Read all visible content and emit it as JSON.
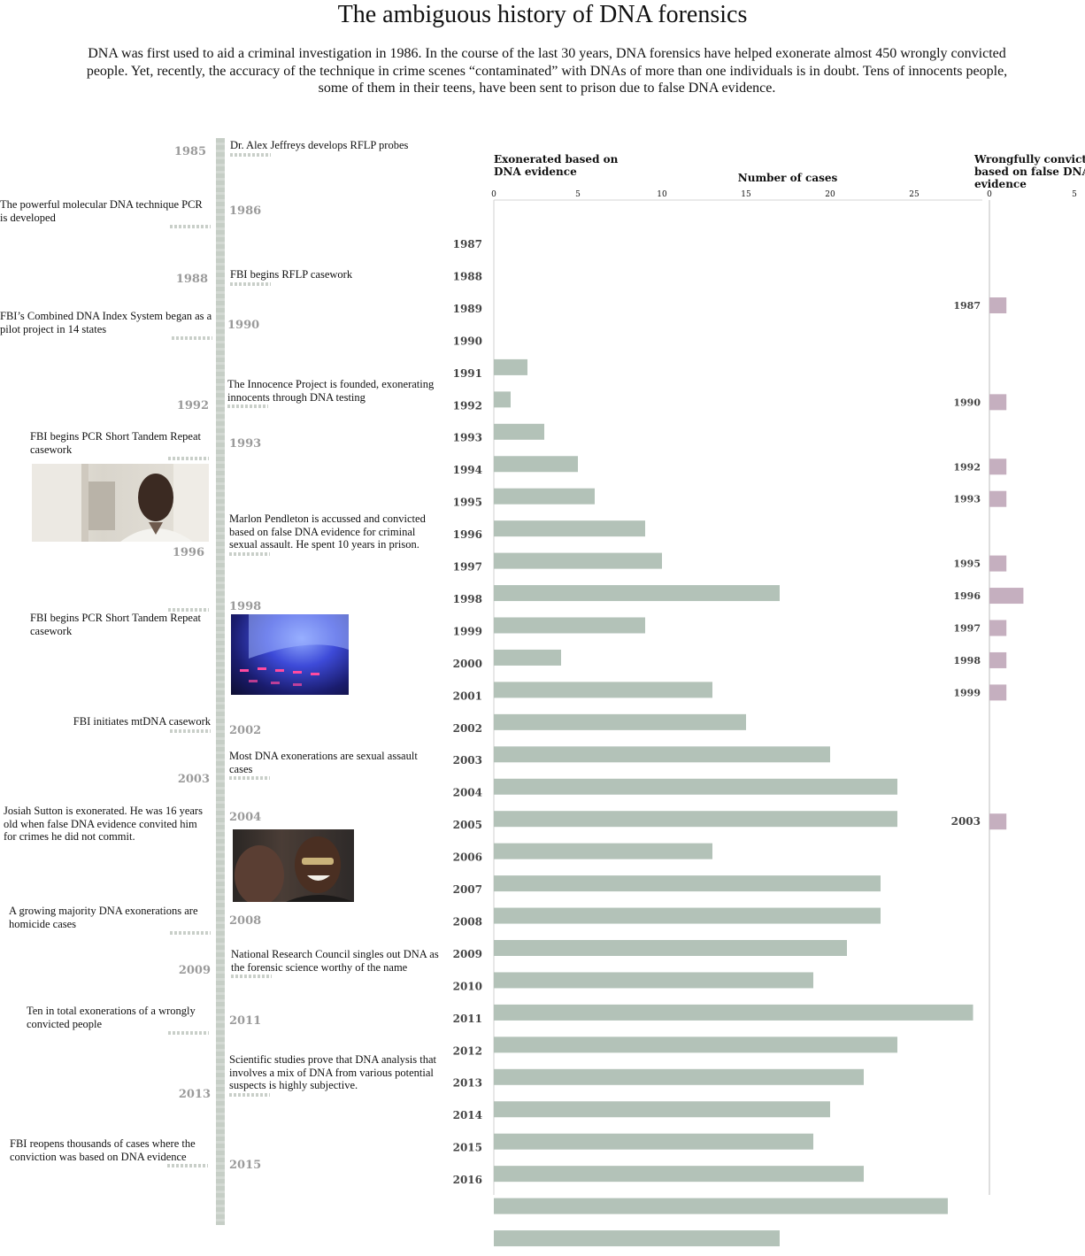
{
  "title": "The ambiguous history of DNA forensics",
  "intro": "DNA was first used to aid a criminal investigation in 1986. In the course of the last 30 years, DNA forensics have helped exonerate almost 450 wrongly convicted people. Yet, recently, the accuracy of the technique in crime scenes “contaminated” with DNAs of more than one individuals is in doubt. Tens of innocents people, some of them in their teens, have been sent to prison due to false DNA evidence.",
  "timeline": [
    {
      "year": "1985",
      "side": "right",
      "text": "Dr. Alex Jeffreys develops RFLP probes"
    },
    {
      "year": "1986",
      "side": "left",
      "text": "The powerful molecular DNA technique PCR is developed"
    },
    {
      "year": "1988",
      "side": "right",
      "text": "FBI begins RFLP casework"
    },
    {
      "year": "1990",
      "side": "left",
      "text": "FBI’s Combined DNA Index System began as a pilot project in 14 states"
    },
    {
      "year": "1992",
      "side": "right",
      "text": "The Innocence Project is founded, exonerating innocents through DNA testing"
    },
    {
      "year": "1993",
      "side": "left",
      "text": "FBI begins PCR Short Tandem Repeat casework"
    },
    {
      "year": "1996",
      "side": "right",
      "text": "Marlon Pendleton is accussed and convicted based on false DNA evidence for criminal sexual assault. He spent 10 years in prison."
    },
    {
      "year": "1998",
      "side": "left",
      "text": "FBI begins PCR Short Tandem Repeat casework"
    },
    {
      "year": "2002",
      "side": "left",
      "text": "FBI initiates mtDNA casework"
    },
    {
      "year": "2003",
      "side": "right",
      "text": "Most DNA exonerations are sexual assault cases"
    },
    {
      "year": "2004",
      "side": "left",
      "text": "Josiah Sutton is exonerated. He was 16 years old when false DNA evidence convited him for crimes he did not commit."
    },
    {
      "year": "2008",
      "side": "left",
      "text": "A growing majority DNA exonerations are homicide cases"
    },
    {
      "year": "2009",
      "side": "right",
      "text": "National Research Council singles out DNA as the forensic science worthy of the name"
    },
    {
      "year": "2011",
      "side": "left",
      "text": "Ten in total exonerations of a wrongly convicted people"
    },
    {
      "year": "2013",
      "side": "right",
      "text": "Scientific studies prove that DNA analysis that involves a mix of DNA from various potential suspects is highly subjective."
    },
    {
      "year": "2015",
      "side": "left",
      "text": "FBI reopens thousands of cases where the conviction was based on DNA evidence"
    }
  ],
  "chart_data": [
    {
      "type": "bar",
      "orientation": "horizontal",
      "title": "Exonerated based on DNA  evidence",
      "xlabel": "Number of cases",
      "xlim": [
        0,
        29
      ],
      "xticks": [
        0,
        5,
        10,
        15,
        20,
        25
      ],
      "color": "#b3c2b8",
      "categories": [
        "1987",
        "1988",
        "1989",
        "1990",
        "1991",
        "1992",
        "1993",
        "1994",
        "1995",
        "1996",
        "1997",
        "1998",
        "1999",
        "2000",
        "2001",
        "2002",
        "2003",
        "2004",
        "2005",
        "2006",
        "2007",
        "2008",
        "2009",
        "2010",
        "2011",
        "2012",
        "2013",
        "2014",
        "2015",
        "2016"
      ],
      "values": [
        0,
        0,
        2,
        1,
        3,
        5,
        6,
        9,
        10,
        17,
        9,
        4,
        13,
        15,
        20,
        24,
        24,
        13,
        23,
        23,
        21,
        19,
        28.5,
        24,
        22,
        20,
        19,
        22,
        27,
        17
      ]
    },
    {
      "type": "bar",
      "orientation": "horizontal",
      "title": "Wrongfully convicted based on false DNA evidence",
      "xlim": [
        0,
        5
      ],
      "xticks": [
        0,
        5
      ],
      "color": "#c5afbf",
      "categories": [
        "1987",
        "1990",
        "1992",
        "1993",
        "1995",
        "1996",
        "1997",
        "1998",
        "1999",
        "2003"
      ],
      "values": [
        1,
        1,
        1,
        1,
        1,
        2,
        1,
        1,
        1,
        1
      ]
    }
  ]
}
